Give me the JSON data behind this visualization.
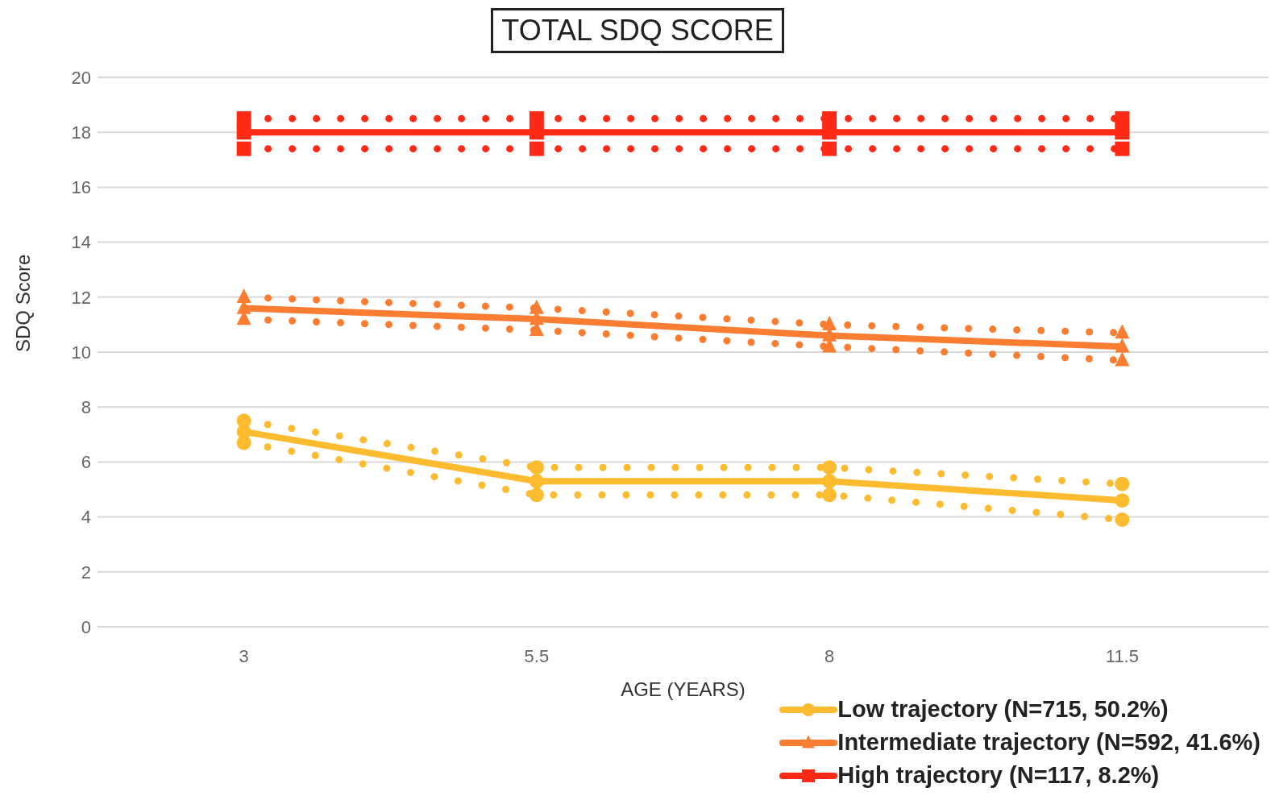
{
  "chart_data": {
    "type": "line",
    "title": "TOTAL SDQ SCORE",
    "xlabel": "AGE (YEARS)",
    "ylabel": "SDQ Score",
    "categories": [
      "3",
      "5.5",
      "8",
      "11.5"
    ],
    "ylim": [
      0,
      20
    ],
    "yticks": [
      0,
      2,
      4,
      6,
      8,
      10,
      12,
      14,
      16,
      18,
      20
    ],
    "grid": "y",
    "legend": "bottom right",
    "line_style": "solid",
    "series": [
      {
        "name": "Low trajectory (N=715, 50.2%)",
        "color": "#fdbb30",
        "marker": "circle",
        "values": [
          7.1,
          5.3,
          5.3,
          4.6
        ]
      },
      {
        "color": "#fdbb30",
        "marker": "circle",
        "line_style": "dotted",
        "values": [
          7.5,
          5.8,
          5.8,
          5.2
        ]
      },
      {
        "color": "#fdbb30",
        "marker": "circle",
        "line_style": "dotted",
        "values": [
          6.7,
          4.8,
          4.8,
          3.9
        ]
      },
      {
        "name": "Intermediate trajectory (N=592, 41.6%)",
        "color": "#fb7d32",
        "marker": "triangle",
        "values": [
          11.6,
          11.2,
          10.6,
          10.2
        ]
      },
      {
        "color": "#fb7d32",
        "marker": "triangle",
        "line_style": "dotted",
        "values": [
          12.0,
          11.6,
          11.0,
          10.7
        ]
      },
      {
        "color": "#fb7d32",
        "marker": "triangle",
        "line_style": "dotted",
        "values": [
          11.2,
          10.8,
          10.2,
          9.7
        ]
      },
      {
        "name": "High trajectory (N=117, 8.2%)",
        "color": "#ff2a16",
        "marker": "square",
        "values": [
          18,
          18,
          18,
          18
        ]
      },
      {
        "color": "#ff2a16",
        "marker": "square",
        "line_style": "dotted",
        "values": [
          18.5,
          18.5,
          18.5,
          18.5
        ]
      },
      {
        "color": "#ff2a16",
        "marker": "square",
        "line_style": "dotted",
        "values": [
          17.4,
          17.4,
          17.4,
          17.4
        ]
      }
    ]
  }
}
